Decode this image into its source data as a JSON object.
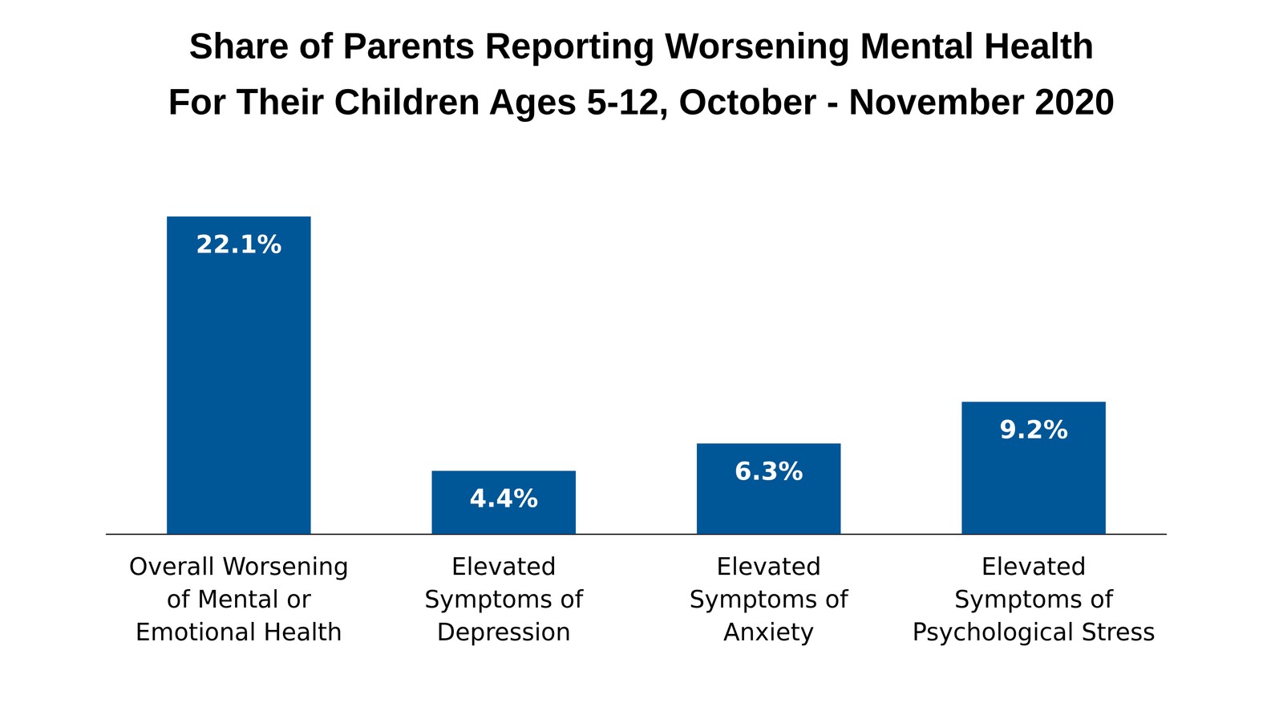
{
  "chart_data": {
    "type": "bar",
    "title": "Share of Parents Reporting Worsening Mental Health\nFor Their Children Ages 5-12, October - November 2020",
    "categories": [
      "Overall Worsening\nof Mental or\nEmotional Health",
      "Elevated\nSymptoms of\nDepression",
      "Elevated\nSymptoms of\nAnxiety",
      "Elevated\nSymptoms of\nPsychological Stress"
    ],
    "values": [
      22.1,
      4.4,
      6.3,
      9.2
    ],
    "value_labels": [
      "22.1%",
      "4.4%",
      "6.3%",
      "9.2%"
    ],
    "color": "#005797",
    "ylim": [
      0,
      22.1
    ],
    "grid": false,
    "data_labels": true,
    "tick_labels": "x"
  }
}
